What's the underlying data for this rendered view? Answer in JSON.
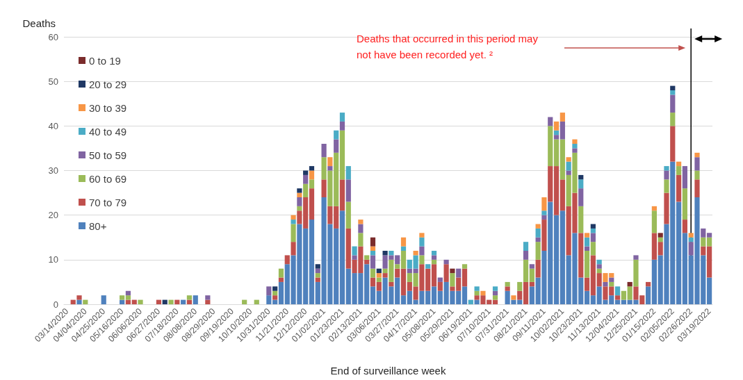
{
  "chart_data": {
    "type": "bar",
    "stacked": true,
    "xlabel": "End of surveillance week",
    "ylabel": "Deaths",
    "annotations": [
      "Deaths that occurred in this period may not have been recorded yet. ²"
    ],
    "categories": [
      "03/14/2020",
      null,
      null,
      "04/04/2020",
      null,
      null,
      "04/25/2020",
      null,
      null,
      "05/16/2020",
      null,
      null,
      "06/06/2020",
      null,
      null,
      "06/27/2020",
      null,
      null,
      "07/18/2020",
      null,
      null,
      "08/08/2020",
      null,
      null,
      "08/29/2020",
      null,
      null,
      "09/19/2020",
      null,
      null,
      "10/10/2020",
      null,
      null,
      "10/31/2020",
      null,
      null,
      "11/21/2020",
      null,
      null,
      "12/12/2020",
      null,
      null,
      "01/02/2021",
      null,
      null,
      "01/23/2021",
      null,
      null,
      "02/13/2021",
      null,
      null,
      "03/06/2021",
      null,
      null,
      "03/27/2021",
      null,
      null,
      "04/17/2021",
      null,
      null,
      "05/08/2021",
      null,
      null,
      "05/29/2021",
      null,
      null,
      "06/19/2021",
      null,
      null,
      "07/10/2021",
      null,
      null,
      "07/31/2021",
      null,
      null,
      "08/21/2021",
      null,
      null,
      "09/11/2021",
      null,
      null,
      "10/02/2021",
      null,
      null,
      "10/23/2021",
      null,
      null,
      "11/13/2021",
      null,
      null,
      "12/04/2021",
      null,
      null,
      "12/25/2021",
      null,
      null,
      "01/15/2022",
      null,
      null,
      "02/05/2022",
      null,
      null,
      "02/26/2022",
      null,
      null,
      "03/19/2022"
    ],
    "series": [
      {
        "name": "80+",
        "color": "#4f81bd",
        "values": [
          0,
          0,
          1,
          0,
          0,
          0,
          2,
          0,
          0,
          1,
          0,
          0,
          0,
          0,
          0,
          0,
          0,
          0,
          0,
          1,
          0,
          2,
          0,
          0,
          0,
          0,
          0,
          0,
          0,
          0,
          0,
          0,
          0,
          2,
          1,
          5,
          9,
          11,
          18,
          17,
          19,
          5,
          24,
          18,
          17,
          21,
          8,
          7,
          7,
          9,
          4,
          3,
          6,
          4,
          6,
          2,
          3,
          1,
          3,
          3,
          4,
          3,
          5,
          3,
          3,
          4,
          0,
          1,
          0,
          0,
          0,
          0,
          3,
          1,
          1,
          0,
          4,
          6,
          12,
          23,
          20,
          21,
          11,
          16,
          6,
          3,
          2,
          4,
          1,
          2,
          1,
          1,
          1,
          1,
          0,
          4,
          10,
          11,
          18,
          32,
          23,
          16,
          11,
          24,
          11,
          6
        ]
      },
      {
        "name": "70 to 79",
        "color": "#c0504d",
        "values": [
          0,
          1,
          1,
          0,
          0,
          0,
          0,
          0,
          0,
          0,
          1,
          1,
          0,
          0,
          0,
          1,
          0,
          0,
          1,
          0,
          1,
          0,
          0,
          1,
          0,
          0,
          0,
          0,
          0,
          0,
          0,
          0,
          0,
          0,
          1,
          1,
          2,
          3,
          3,
          7,
          7,
          1,
          4,
          4,
          5,
          7,
          9,
          3,
          6,
          1,
          2,
          2,
          1,
          1,
          2,
          6,
          2,
          3,
          6,
          5,
          5,
          2,
          4,
          1,
          3,
          4,
          0,
          1,
          2,
          1,
          1,
          0,
          1,
          0,
          2,
          5,
          1,
          4,
          7,
          8,
          11,
          7,
          11,
          9,
          10,
          3,
          9,
          3,
          3,
          2,
          1,
          0,
          0,
          3,
          2,
          1,
          6,
          3,
          7,
          8,
          6,
          3,
          0,
          4,
          2,
          7
        ]
      },
      {
        "name": "60 to 69",
        "color": "#9bbb59",
        "values": [
          0,
          0,
          0,
          1,
          0,
          0,
          0,
          0,
          0,
          1,
          1,
          0,
          1,
          0,
          0,
          0,
          0,
          1,
          0,
          0,
          1,
          0,
          0,
          0,
          0,
          0,
          0,
          0,
          0,
          1,
          0,
          1,
          0,
          0,
          1,
          2,
          0,
          4,
          1,
          3,
          2,
          1,
          5,
          8,
          12,
          11,
          6,
          0,
          3,
          1,
          2,
          1,
          1,
          5,
          1,
          4,
          2,
          3,
          2,
          0,
          1,
          0,
          0,
          3,
          0,
          1,
          0,
          1,
          0,
          0,
          1,
          0,
          1,
          0,
          2,
          5,
          3,
          4,
          0,
          9,
          6,
          9,
          7,
          9,
          6,
          6,
          3,
          1,
          0,
          1,
          0,
          2,
          3,
          6,
          0,
          0,
          5,
          1,
          3,
          3,
          2,
          7,
          0,
          2,
          2,
          2
        ]
      },
      {
        "name": "50 to 59",
        "color": "#8064a2",
        "values": [
          0,
          0,
          0,
          0,
          0,
          0,
          0,
          0,
          0,
          0,
          1,
          0,
          0,
          0,
          0,
          0,
          0,
          0,
          0,
          0,
          0,
          0,
          0,
          1,
          0,
          0,
          0,
          0,
          0,
          0,
          0,
          0,
          0,
          2,
          0,
          0,
          0,
          0,
          2,
          2,
          0,
          1,
          3,
          1,
          3,
          2,
          5,
          1,
          2,
          0,
          3,
          0,
          3,
          1,
          2,
          0,
          1,
          1,
          2,
          0,
          1,
          1,
          1,
          0,
          2,
          0,
          0,
          0,
          0,
          0,
          1,
          0,
          0,
          0,
          0,
          2,
          1,
          1,
          1,
          2,
          1,
          4,
          1,
          1,
          4,
          1,
          2,
          1,
          1,
          1,
          0,
          0,
          0,
          1,
          0,
          0,
          0,
          0,
          2,
          4,
          0,
          5,
          3,
          3,
          2,
          1
        ]
      },
      {
        "name": "40 to 49",
        "color": "#4bacc6",
        "values": [
          0,
          0,
          0,
          0,
          0,
          0,
          0,
          0,
          0,
          0,
          0,
          0,
          0,
          0,
          0,
          0,
          0,
          0,
          0,
          0,
          0,
          0,
          0,
          0,
          0,
          0,
          0,
          0,
          0,
          0,
          0,
          0,
          0,
          0,
          0,
          0,
          0,
          1,
          0,
          0,
          0,
          0,
          0,
          0,
          2,
          2,
          3,
          2,
          0,
          0,
          1,
          0,
          0,
          1,
          0,
          1,
          2,
          3,
          2,
          1,
          1,
          0,
          0,
          0,
          0,
          0,
          1,
          1,
          0,
          0,
          1,
          0,
          0,
          0,
          0,
          2,
          0,
          2,
          1,
          0,
          1,
          0,
          2,
          1,
          2,
          2,
          1,
          1,
          0,
          0,
          2,
          0,
          0,
          0,
          0,
          0,
          0,
          0,
          1,
          1,
          0,
          0,
          1,
          0,
          0,
          0
        ]
      },
      {
        "name": "30 to 39",
        "color": "#f79646",
        "values": [
          0,
          0,
          0,
          0,
          0,
          0,
          0,
          0,
          0,
          0,
          0,
          0,
          0,
          0,
          0,
          0,
          0,
          0,
          0,
          0,
          0,
          0,
          0,
          0,
          0,
          0,
          0,
          0,
          0,
          0,
          0,
          0,
          0,
          0,
          0,
          0,
          0,
          1,
          1,
          0,
          2,
          0,
          0,
          2,
          0,
          0,
          0,
          0,
          1,
          0,
          1,
          1,
          0,
          0,
          0,
          2,
          0,
          1,
          1,
          0,
          0,
          0,
          0,
          0,
          0,
          0,
          0,
          0,
          1,
          0,
          0,
          0,
          0,
          1,
          0,
          0,
          0,
          1,
          3,
          0,
          2,
          2,
          1,
          1,
          0,
          1,
          0,
          0,
          2,
          1,
          0,
          0,
          0,
          0,
          0,
          0,
          1,
          0,
          0,
          0,
          1,
          0,
          1,
          1,
          0,
          0
        ]
      },
      {
        "name": "20 to 29",
        "color": "#1f3864",
        "values": [
          0,
          0,
          0,
          0,
          0,
          0,
          0,
          0,
          0,
          0,
          0,
          0,
          0,
          0,
          0,
          0,
          1,
          0,
          0,
          0,
          0,
          0,
          0,
          0,
          0,
          0,
          0,
          0,
          0,
          0,
          0,
          0,
          0,
          0,
          1,
          0,
          0,
          0,
          1,
          1,
          1,
          1,
          0,
          0,
          0,
          0,
          0,
          0,
          0,
          0,
          0,
          1,
          1,
          0,
          0,
          0,
          0,
          0,
          0,
          0,
          0,
          0,
          0,
          0,
          0,
          0,
          0,
          0,
          0,
          0,
          0,
          0,
          0,
          0,
          0,
          0,
          0,
          0,
          0,
          0,
          0,
          0,
          0,
          0,
          1,
          0,
          1,
          0,
          0,
          0,
          0,
          0,
          0,
          0,
          0,
          0,
          0,
          0,
          0,
          1,
          0,
          0,
          0,
          0,
          0,
          0
        ]
      },
      {
        "name": "0 to 19",
        "color": "#7b2c2c",
        "values": [
          0,
          0,
          0,
          0,
          0,
          0,
          0,
          0,
          0,
          0,
          0,
          0,
          0,
          0,
          0,
          0,
          0,
          0,
          0,
          0,
          0,
          0,
          0,
          0,
          0,
          0,
          0,
          0,
          0,
          0,
          0,
          0,
          0,
          0,
          0,
          0,
          0,
          0,
          0,
          0,
          0,
          0,
          0,
          0,
          0,
          0,
          0,
          0,
          0,
          0,
          2,
          0,
          0,
          0,
          0,
          0,
          0,
          0,
          0,
          0,
          0,
          0,
          0,
          1,
          0,
          0,
          0,
          0,
          0,
          0,
          0,
          0,
          0,
          0,
          0,
          0,
          0,
          0,
          0,
          0,
          0,
          0,
          0,
          0,
          0,
          0,
          0,
          0,
          0,
          0,
          0,
          0,
          1,
          0,
          0,
          0,
          0,
          1,
          0,
          0,
          0,
          0,
          0,
          0,
          0,
          0
        ]
      }
    ],
    "ylim": [
      0,
      60
    ],
    "yticks": [
      0,
      10,
      20,
      30,
      40,
      50,
      60
    ],
    "grid": "y",
    "legend": "top left",
    "ref_lines": [
      {
        "axis": "x",
        "value": "02/26/2022",
        "color": "#000000"
      }
    ]
  }
}
